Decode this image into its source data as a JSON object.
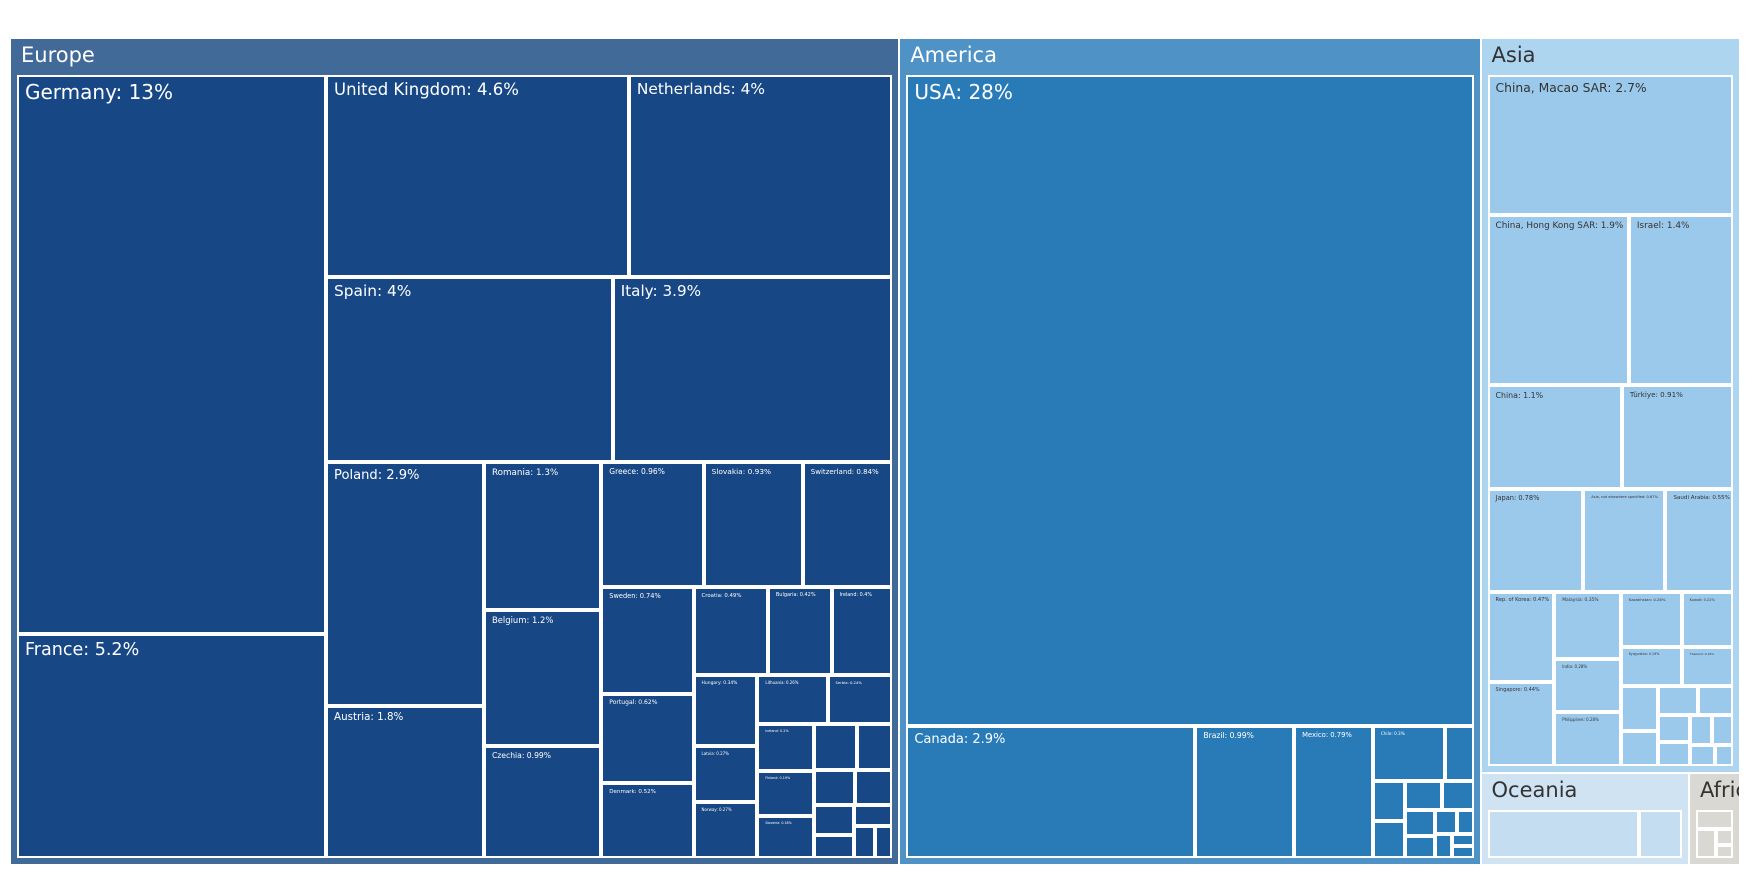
{
  "chart_data": {
    "type": "treemap",
    "title": "",
    "unit": "%",
    "colors": {
      "Europe": {
        "group": "#426a99",
        "leaf": "#174784",
        "text": "#ffffff"
      },
      "America": {
        "group": "#4e92c6",
        "leaf": "#287bb7",
        "text": "#ffffff"
      },
      "Asia": {
        "group": "#aed5f0",
        "leaf": "#9bc9ec",
        "text": "#333333"
      },
      "Oceania": {
        "group": "#cfe3f3",
        "leaf": "#c4ddf1",
        "text": "#333333"
      },
      "Africa": {
        "group": "#d9d8d2",
        "leaf": "#d9d8d2",
        "text": "#333333"
      }
    },
    "groups": [
      {
        "name": "Europe",
        "items": [
          {
            "name": "Germany",
            "label": "Germany: 13%",
            "value": 13
          },
          {
            "name": "France",
            "label": "France: 5.2%",
            "value": 5.2
          },
          {
            "name": "United Kingdom",
            "label": "United Kingdom: 4.6%",
            "value": 4.6
          },
          {
            "name": "Netherlands",
            "label": "Netherlands: 4%",
            "value": 4
          },
          {
            "name": "Spain",
            "label": "Spain: 4%",
            "value": 4
          },
          {
            "name": "Italy",
            "label": "Italy: 3.9%",
            "value": 3.9
          },
          {
            "name": "Poland",
            "label": "Poland: 2.9%",
            "value": 2.9
          },
          {
            "name": "Austria",
            "label": "Austria: 1.8%",
            "value": 1.8
          },
          {
            "name": "Romania",
            "label": "Romania: 1.3%",
            "value": 1.3
          },
          {
            "name": "Belgium",
            "label": "Belgium: 1.2%",
            "value": 1.2
          },
          {
            "name": "Czechia",
            "label": "Czechia: 0.99%",
            "value": 0.99
          },
          {
            "name": "Greece",
            "label": "Greece: 0.96%",
            "value": 0.96
          },
          {
            "name": "Slovakia",
            "label": "Slovakia: 0.93%",
            "value": 0.93
          },
          {
            "name": "Switzerland",
            "label": "Switzerland: 0.84%",
            "value": 0.84
          },
          {
            "name": "Sweden",
            "label": "Sweden: 0.74%",
            "value": 0.74
          },
          {
            "name": "Croatia",
            "label": "Croatia: 0.49%",
            "value": 0.49
          },
          {
            "name": "Bulgaria",
            "label": "Bulgaria: 0.42%",
            "value": 0.42
          },
          {
            "name": "Ireland",
            "label": "Ireland: 0.4%",
            "value": 0.4
          },
          {
            "name": "Portugal",
            "label": "Portugal: 0.62%",
            "value": 0.62
          },
          {
            "name": "Hungary",
            "label": "Hungary: 0.34%",
            "value": 0.34
          },
          {
            "name": "Lithuania",
            "label": "Lithuania: 0.26%",
            "value": 0.26
          },
          {
            "name": "Serbia",
            "label": "Serbia: 0.24%",
            "value": 0.24
          },
          {
            "name": "Latvia",
            "label": "Latvia: 0.27%",
            "value": 0.27
          },
          {
            "name": "Finland",
            "label": "Finland: 0.19%",
            "value": 0.19
          },
          {
            "name": "Slovenia",
            "label": "Slovenia: 0.18%",
            "value": 0.18
          },
          {
            "name": "Denmark",
            "label": "Denmark: 0.52%",
            "value": 0.52
          },
          {
            "name": "Norway",
            "label": "Norway: 0.27%",
            "value": 0.27
          },
          {
            "name": "Iceland",
            "label": "Iceland: 0.2%",
            "value": 0.2
          },
          {
            "name": "",
            "label": "",
            "value": 0.15
          },
          {
            "name": "",
            "label": "",
            "value": 0.12
          },
          {
            "name": "",
            "label": "",
            "value": 0.11
          },
          {
            "name": "",
            "label": "",
            "value": 0.1
          },
          {
            "name": "",
            "label": "",
            "value": 0.09
          },
          {
            "name": "",
            "label": "",
            "value": 0.07
          },
          {
            "name": "",
            "label": "",
            "value": 0.06
          },
          {
            "name": "",
            "label": "",
            "value": 0.05
          },
          {
            "name": "",
            "label": "",
            "value": 0.04
          }
        ]
      },
      {
        "name": "America",
        "items": [
          {
            "name": "USA",
            "label": "USA: 28%",
            "value": 28
          },
          {
            "name": "Canada",
            "label": "Canada: 2.9%",
            "value": 2.9
          },
          {
            "name": "Brazil",
            "label": "Brazil: 0.99%",
            "value": 0.99
          },
          {
            "name": "Mexico",
            "label": "Mexico: 0.79%",
            "value": 0.79
          },
          {
            "name": "Chile",
            "label": "Chile: 0.3%",
            "value": 0.3
          },
          {
            "name": "",
            "label": "",
            "value": 0.12
          },
          {
            "name": "",
            "label": "",
            "value": 0.1
          },
          {
            "name": "",
            "label": "",
            "value": 0.09
          },
          {
            "name": "",
            "label": "",
            "value": 0.08
          },
          {
            "name": "",
            "label": "",
            "value": 0.07
          },
          {
            "name": "",
            "label": "",
            "value": 0.06
          },
          {
            "name": "",
            "label": "",
            "value": 0.05
          },
          {
            "name": "",
            "label": "",
            "value": 0.04
          },
          {
            "name": "",
            "label": "",
            "value": 0.03
          },
          {
            "name": "",
            "label": "",
            "value": 0.03
          },
          {
            "name": "",
            "label": "",
            "value": 0.02
          },
          {
            "name": "",
            "label": "",
            "value": 0.02
          }
        ]
      },
      {
        "name": "Asia",
        "items": [
          {
            "name": "China, Macao SAR",
            "label": "China, Macao SAR: 2.7%",
            "value": 2.7
          },
          {
            "name": "China, Hong Kong SAR",
            "label": "China, Hong Kong SAR: 1.9%",
            "value": 1.9
          },
          {
            "name": "Israel",
            "label": "Israel: 1.4%",
            "value": 1.4
          },
          {
            "name": "China",
            "label": "China: 1.1%",
            "value": 1.1
          },
          {
            "name": "Türkiye",
            "label": "Türkiye: 0.91%",
            "value": 0.91
          },
          {
            "name": "Japan",
            "label": "Japan: 0.78%",
            "value": 0.78
          },
          {
            "name": "Asia, not elsewhere specified",
            "label": "Asia, not elsewhere specified: 0.67%",
            "value": 0.67
          },
          {
            "name": "Saudi Arabia",
            "label": "Saudi Arabia: 0.55%",
            "value": 0.55
          },
          {
            "name": "Malaysia",
            "label": "Malaysia: 0.35%",
            "value": 0.35
          },
          {
            "name": "India",
            "label": "India: 0.28%",
            "value": 0.28
          },
          {
            "name": "Rep. of Korea",
            "label": "Rep. of Korea: 0.47%",
            "value": 0.47
          },
          {
            "name": "Philippines",
            "label": "Philippines: 0.28%",
            "value": 0.28
          },
          {
            "name": "Kazakhstan",
            "label": "Kazakhstan: 0.26%",
            "value": 0.26
          },
          {
            "name": "Singapore",
            "label": "Singapore: 0.44%",
            "value": 0.44
          },
          {
            "name": "Kuwait",
            "label": "Kuwait: 0.22%",
            "value": 0.22
          },
          {
            "name": "Thailand",
            "label": "Thailand: 0.16%",
            "value": 0.16
          },
          {
            "name": "Kyrgyzstan",
            "label": "Kyrgyzstan: 0.19%",
            "value": 0.19
          },
          {
            "name": "",
            "label": "",
            "value": 0.13
          },
          {
            "name": "",
            "label": "",
            "value": 0.1
          },
          {
            "name": "",
            "label": "",
            "value": 0.09
          },
          {
            "name": "",
            "label": "",
            "value": 0.08
          },
          {
            "name": "",
            "label": "",
            "value": 0.07
          },
          {
            "name": "",
            "label": "",
            "value": 0.06
          },
          {
            "name": "",
            "label": "",
            "value": 0.05
          },
          {
            "name": "",
            "label": "",
            "value": 0.05
          },
          {
            "name": "",
            "label": "",
            "value": 0.04
          },
          {
            "name": "",
            "label": "",
            "value": 0.03
          }
        ]
      },
      {
        "name": "Oceania",
        "items": [
          {
            "name": "",
            "label": "",
            "value": 1.05
          },
          {
            "name": "",
            "label": "",
            "value": 0.3
          }
        ]
      },
      {
        "name": "Africa",
        "items": [
          {
            "name": "",
            "label": "",
            "value": 0.13
          },
          {
            "name": "",
            "label": "",
            "value": 0.11
          },
          {
            "name": "",
            "label": "",
            "value": 0.05
          },
          {
            "name": "",
            "label": "",
            "value": 0.04
          }
        ]
      }
    ]
  }
}
